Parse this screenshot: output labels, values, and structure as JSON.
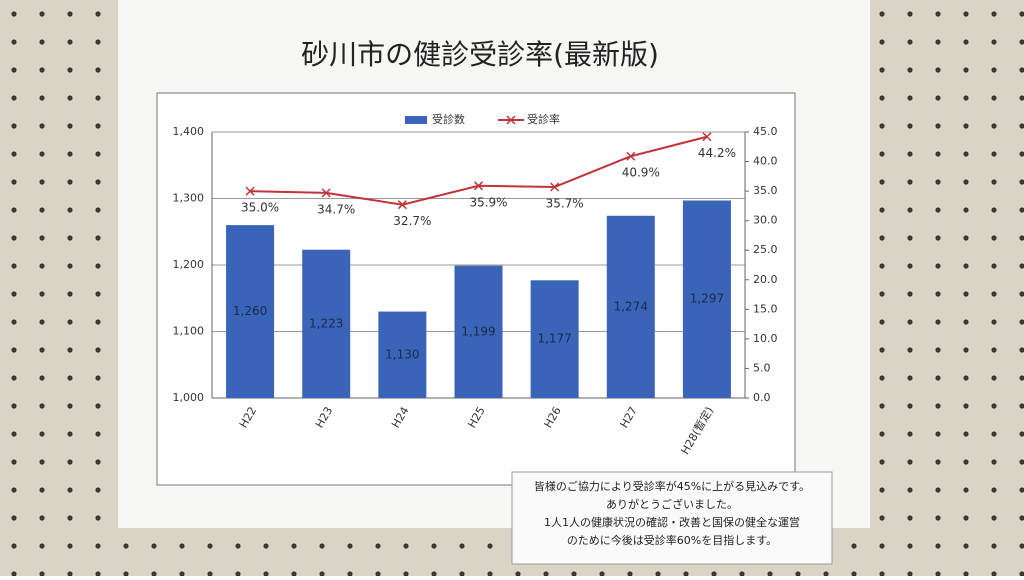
{
  "chart_data": {
    "type": "bar",
    "title": "砂川市の健診受診率(最新版)",
    "categories": [
      "H22",
      "H23",
      "H24",
      "H25",
      "H26",
      "H27",
      "H28(暫定)"
    ],
    "series": [
      {
        "name": "受診数",
        "color": "#3a64b8",
        "values": [
          1260,
          1223,
          1130,
          1199,
          1177,
          1274,
          1297
        ],
        "value_labels": [
          "1,260",
          "1,223",
          "1,130",
          "1,199",
          "1,177",
          "1,274",
          "1,297"
        ]
      },
      {
        "name": "受診率",
        "color": "#c0343a",
        "axis": "y2",
        "values": [
          35.0,
          34.7,
          32.7,
          35.9,
          35.7,
          40.9,
          44.2
        ],
        "value_labels": [
          "35.0%",
          "34.7%",
          "32.7%",
          "35.9%",
          "35.7%",
          "40.9%",
          "44.2%"
        ]
      }
    ],
    "ylim": [
      1000,
      1400
    ],
    "yticks": [
      {
        "value": 1000,
        "label": "1,000"
      },
      {
        "value": 1100,
        "label": "1,100"
      },
      {
        "value": 1200,
        "label": "1,200"
      },
      {
        "value": 1300,
        "label": "1,300"
      },
      {
        "value": 1400,
        "label": "1,400"
      }
    ],
    "y2lim": [
      0,
      45
    ],
    "y2ticks": [
      {
        "value": 0,
        "label": "0.0"
      },
      {
        "value": 5,
        "label": "5.0"
      },
      {
        "value": 10,
        "label": "10.0"
      },
      {
        "value": 15,
        "label": "15.0"
      },
      {
        "value": 20,
        "label": "20.0"
      },
      {
        "value": 25,
        "label": "25.0"
      },
      {
        "value": 30,
        "label": "30.0"
      },
      {
        "value": 35,
        "label": "35.0"
      },
      {
        "value": 40,
        "label": "40.0"
      },
      {
        "value": 45,
        "label": "45.0"
      }
    ],
    "grid": true,
    "legend": "top",
    "note": [
      "皆様のご協力により受診率が45%に上がる見込みです。",
      "ありがとうございました。",
      "1人1人の健康状況の確認・改善と国保の健全な運営",
      "のために今後は受診率60%を目指します。"
    ]
  }
}
